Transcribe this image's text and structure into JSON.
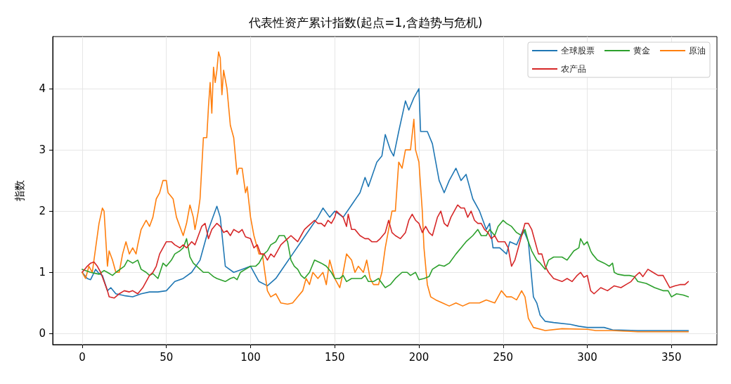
{
  "chart_data": {
    "type": "line",
    "title": "代表性资产累计指数(起点=1,含趋势与危机)",
    "ylabel": "指数",
    "xlim": [
      -17.5,
      377
    ],
    "ylim": [
      -0.18,
      4.85
    ],
    "xticks": [
      0,
      50,
      100,
      150,
      200,
      250,
      300,
      350
    ],
    "yticks": [
      0,
      1,
      2,
      3,
      4
    ],
    "grid": true,
    "legend": "top right",
    "marker": "none",
    "line_style": "solid",
    "series": [
      {
        "name": "全球股票",
        "color": "#1f77b4",
        "x": [
          0,
          3,
          5,
          8,
          10,
          12,
          15,
          17,
          20,
          25,
          30,
          35,
          40,
          45,
          50,
          55,
          60,
          65,
          70,
          75,
          80,
          82,
          85,
          90,
          95,
          100,
          105,
          110,
          115,
          120,
          125,
          130,
          135,
          140,
          143,
          147,
          150,
          155,
          160,
          165,
          168,
          170,
          175,
          178,
          180,
          183,
          185,
          188,
          192,
          194,
          197,
          200,
          201,
          205,
          208,
          212,
          215,
          218,
          222,
          225,
          228,
          232,
          236,
          240,
          242,
          244,
          248,
          252,
          254,
          258,
          262,
          265,
          268,
          270,
          272,
          275,
          280,
          290,
          295,
          300,
          310,
          315,
          330,
          345,
          360
        ],
        "values": [
          1.0,
          0.9,
          0.88,
          1.05,
          0.98,
          0.95,
          0.7,
          0.75,
          0.65,
          0.62,
          0.6,
          0.65,
          0.68,
          0.68,
          0.7,
          0.85,
          0.9,
          1.0,
          1.2,
          1.7,
          2.08,
          1.9,
          1.1,
          1.0,
          1.05,
          1.1,
          0.85,
          0.78,
          0.9,
          1.1,
          1.3,
          1.5,
          1.7,
          1.9,
          2.05,
          1.9,
          2.0,
          1.9,
          2.1,
          2.3,
          2.55,
          2.4,
          2.8,
          2.9,
          3.25,
          3.0,
          2.9,
          3.3,
          3.8,
          3.65,
          3.85,
          4.0,
          3.3,
          3.3,
          3.1,
          2.5,
          2.3,
          2.5,
          2.7,
          2.5,
          2.6,
          2.2,
          2.0,
          1.7,
          1.8,
          1.4,
          1.4,
          1.3,
          1.5,
          1.45,
          1.7,
          1.5,
          0.6,
          0.5,
          0.3,
          0.2,
          0.18,
          0.15,
          0.12,
          0.1,
          0.1,
          0.06,
          0.05,
          0.05,
          0.05
        ]
      },
      {
        "name": "原油",
        "color": "#ff7f0e",
        "x": [
          0,
          2,
          4,
          6,
          8,
          10,
          12,
          13,
          15,
          16,
          18,
          20,
          22,
          24,
          26,
          28,
          30,
          32,
          33,
          35,
          38,
          40,
          42,
          44,
          46,
          48,
          50,
          51,
          54,
          56,
          58,
          60,
          62,
          64,
          66,
          67,
          69,
          70,
          72,
          74,
          75,
          76,
          77,
          78,
          79,
          80,
          81,
          82,
          83,
          84,
          86,
          88,
          90,
          92,
          93,
          95,
          97,
          98,
          100,
          102,
          105,
          107,
          108,
          110,
          112,
          115,
          118,
          122,
          125,
          128,
          131,
          133,
          135,
          137,
          140,
          143,
          145,
          147,
          150,
          153,
          155,
          157,
          160,
          162,
          164,
          167,
          169,
          171,
          173,
          176,
          178,
          180,
          182,
          184,
          186,
          188,
          190,
          192,
          195,
          197,
          198,
          200,
          202,
          203,
          205,
          207,
          210,
          214,
          218,
          222,
          226,
          230,
          236,
          240,
          245,
          247,
          249,
          252,
          255,
          258,
          261,
          263,
          265,
          268,
          275,
          285,
          300,
          305,
          315,
          330,
          345,
          360
        ],
        "values": [
          1.0,
          0.9,
          1.1,
          1.0,
          1.4,
          1.8,
          2.05,
          2.0,
          1.1,
          1.35,
          1.2,
          1.0,
          1.0,
          1.3,
          1.5,
          1.3,
          1.4,
          1.3,
          1.45,
          1.7,
          1.85,
          1.75,
          1.9,
          2.2,
          2.3,
          2.5,
          2.5,
          2.3,
          2.2,
          1.9,
          1.75,
          1.6,
          1.8,
          2.1,
          1.9,
          1.7,
          2.0,
          2.2,
          3.2,
          3.2,
          3.7,
          4.1,
          3.6,
          4.35,
          4.1,
          4.3,
          4.6,
          4.5,
          3.9,
          4.3,
          4.0,
          3.4,
          3.2,
          2.6,
          2.7,
          2.7,
          2.3,
          2.4,
          1.9,
          1.6,
          1.3,
          1.3,
          1.1,
          0.7,
          0.6,
          0.65,
          0.5,
          0.48,
          0.5,
          0.6,
          0.7,
          0.9,
          0.8,
          1.0,
          0.9,
          1.0,
          0.8,
          1.2,
          0.9,
          0.75,
          1.0,
          1.3,
          1.2,
          1.0,
          1.1,
          1.0,
          1.2,
          0.9,
          0.8,
          0.8,
          1.0,
          1.4,
          1.7,
          2.0,
          2.0,
          2.8,
          2.7,
          3.0,
          3.0,
          3.5,
          3.0,
          2.8,
          2.0,
          1.4,
          0.8,
          0.6,
          0.55,
          0.5,
          0.45,
          0.5,
          0.45,
          0.5,
          0.5,
          0.55,
          0.5,
          0.6,
          0.7,
          0.6,
          0.6,
          0.55,
          0.7,
          0.6,
          0.25,
          0.1,
          0.05,
          0.08,
          0.07,
          0.05,
          0.05,
          0.03,
          0.03,
          0.03
        ]
      },
      {
        "name": "黄金",
        "color": "#2ca02c",
        "x": [
          0,
          5,
          10,
          13,
          15,
          18,
          20,
          25,
          27,
          30,
          33,
          35,
          38,
          40,
          42,
          45,
          48,
          50,
          53,
          55,
          58,
          60,
          62,
          64,
          66,
          70,
          72,
          75,
          78,
          80,
          85,
          88,
          90,
          92,
          94,
          97,
          100,
          103,
          105,
          108,
          110,
          112,
          115,
          117,
          120,
          122,
          124,
          126,
          128,
          130,
          132,
          135,
          138,
          142,
          145,
          148,
          150,
          153,
          155,
          157,
          160,
          163,
          166,
          168,
          170,
          173,
          176,
          180,
          183,
          186,
          190,
          193,
          195,
          198,
          200,
          203,
          206,
          208,
          212,
          215,
          218,
          222,
          225,
          228,
          232,
          235,
          237,
          240,
          242,
          245,
          247,
          250,
          252,
          255,
          258,
          261,
          263,
          265,
          267,
          270,
          272,
          275,
          277,
          280,
          285,
          288,
          292,
          295,
          296,
          298,
          300,
          302,
          303,
          306,
          310,
          313,
          315,
          316,
          318,
          322,
          325,
          328,
          330,
          335,
          340,
          345,
          348,
          350,
          353,
          357,
          360
        ],
        "values": [
          1.05,
          1.0,
          0.97,
          1.03,
          1.0,
          0.95,
          1.0,
          1.1,
          1.2,
          1.15,
          1.2,
          1.05,
          1.0,
          0.95,
          0.98,
          0.9,
          1.15,
          1.1,
          1.2,
          1.3,
          1.35,
          1.4,
          1.55,
          1.25,
          1.15,
          1.05,
          1.0,
          1.0,
          0.93,
          0.9,
          0.85,
          0.9,
          0.92,
          0.88,
          1.0,
          1.05,
          1.1,
          1.1,
          1.15,
          1.3,
          1.35,
          1.45,
          1.5,
          1.6,
          1.6,
          1.5,
          1.2,
          1.1,
          1.05,
          0.95,
          0.9,
          1.0,
          1.2,
          1.15,
          1.1,
          1.0,
          0.9,
          0.9,
          0.95,
          0.85,
          0.9,
          0.9,
          0.9,
          0.95,
          0.85,
          0.85,
          0.9,
          0.75,
          0.8,
          0.9,
          1.0,
          1.0,
          0.95,
          1.0,
          0.88,
          0.9,
          0.93,
          1.05,
          1.12,
          1.1,
          1.15,
          1.3,
          1.4,
          1.5,
          1.6,
          1.7,
          1.6,
          1.6,
          1.7,
          1.6,
          1.75,
          1.85,
          1.8,
          1.75,
          1.65,
          1.6,
          1.7,
          1.5,
          1.35,
          1.2,
          1.15,
          1.05,
          1.2,
          1.25,
          1.25,
          1.2,
          1.35,
          1.4,
          1.55,
          1.45,
          1.5,
          1.35,
          1.3,
          1.2,
          1.15,
          1.1,
          1.15,
          1.0,
          0.97,
          0.95,
          0.95,
          0.93,
          0.85,
          0.82,
          0.75,
          0.7,
          0.7,
          0.6,
          0.65,
          0.63,
          0.6
        ]
      },
      {
        "name": "农产品",
        "color": "#d62728",
        "x": [
          0,
          3,
          5,
          7,
          9,
          11,
          13,
          15,
          16,
          19,
          22,
          25,
          28,
          30,
          33,
          36,
          38,
          40,
          42,
          44,
          46,
          48,
          50,
          53,
          55,
          58,
          60,
          62,
          65,
          67,
          69,
          71,
          73,
          75,
          77,
          80,
          82,
          84,
          86,
          88,
          90,
          93,
          95,
          97,
          100,
          102,
          104,
          106,
          108,
          110,
          112,
          114,
          116,
          118,
          120,
          122,
          124,
          126,
          128,
          130,
          132,
          134,
          136,
          138,
          140,
          142,
          144,
          146,
          148,
          150,
          151,
          153,
          155,
          157,
          158,
          160,
          162,
          165,
          168,
          170,
          172,
          175,
          177,
          180,
          182,
          184,
          186,
          189,
          192,
          194,
          196,
          198,
          200,
          202,
          204,
          206,
          208,
          211,
          213,
          215,
          217,
          219,
          221,
          223,
          225,
          227,
          229,
          231,
          233,
          235,
          237,
          239,
          241,
          243,
          245,
          247,
          249,
          251,
          253,
          255,
          257,
          259,
          261,
          263,
          265,
          267,
          269,
          271,
          273,
          275,
          277,
          280,
          285,
          288,
          291,
          294,
          296,
          298,
          300,
          302,
          304,
          308,
          312,
          316,
          320,
          323,
          326,
          329,
          331,
          333,
          336,
          339,
          342,
          345,
          347,
          349,
          352,
          355,
          358,
          360
        ],
        "values": [
          1.0,
          1.1,
          1.15,
          1.17,
          1.1,
          1.0,
          0.85,
          0.7,
          0.6,
          0.58,
          0.65,
          0.7,
          0.68,
          0.7,
          0.65,
          0.75,
          0.85,
          0.95,
          1.0,
          1.1,
          1.3,
          1.4,
          1.5,
          1.5,
          1.45,
          1.4,
          1.45,
          1.4,
          1.5,
          1.45,
          1.6,
          1.75,
          1.8,
          1.55,
          1.7,
          1.8,
          1.75,
          1.65,
          1.68,
          1.6,
          1.7,
          1.65,
          1.7,
          1.58,
          1.55,
          1.4,
          1.45,
          1.3,
          1.3,
          1.2,
          1.3,
          1.25,
          1.35,
          1.45,
          1.5,
          1.55,
          1.6,
          1.55,
          1.5,
          1.6,
          1.7,
          1.75,
          1.8,
          1.85,
          1.8,
          1.8,
          1.75,
          1.85,
          1.8,
          1.9,
          2.0,
          1.95,
          1.9,
          1.75,
          1.95,
          1.7,
          1.7,
          1.6,
          1.55,
          1.55,
          1.5,
          1.5,
          1.55,
          1.65,
          1.85,
          1.65,
          1.6,
          1.55,
          1.65,
          1.85,
          1.95,
          1.85,
          1.8,
          1.65,
          1.75,
          1.65,
          1.6,
          1.9,
          2.0,
          1.8,
          1.75,
          1.9,
          2.0,
          2.1,
          2.05,
          2.05,
          1.9,
          2.0,
          1.85,
          1.8,
          1.8,
          1.7,
          1.65,
          1.55,
          1.6,
          1.5,
          1.5,
          1.5,
          1.4,
          1.1,
          1.2,
          1.4,
          1.6,
          1.8,
          1.8,
          1.7,
          1.5,
          1.3,
          1.3,
          1.1,
          1.0,
          0.9,
          0.85,
          0.9,
          0.85,
          0.95,
          1.0,
          0.92,
          0.95,
          0.7,
          0.65,
          0.75,
          0.7,
          0.78,
          0.75,
          0.8,
          0.85,
          0.95,
          1.0,
          0.93,
          1.05,
          1.0,
          0.95,
          0.95,
          0.85,
          0.75,
          0.78,
          0.8,
          0.8,
          0.85
        ]
      }
    ]
  }
}
